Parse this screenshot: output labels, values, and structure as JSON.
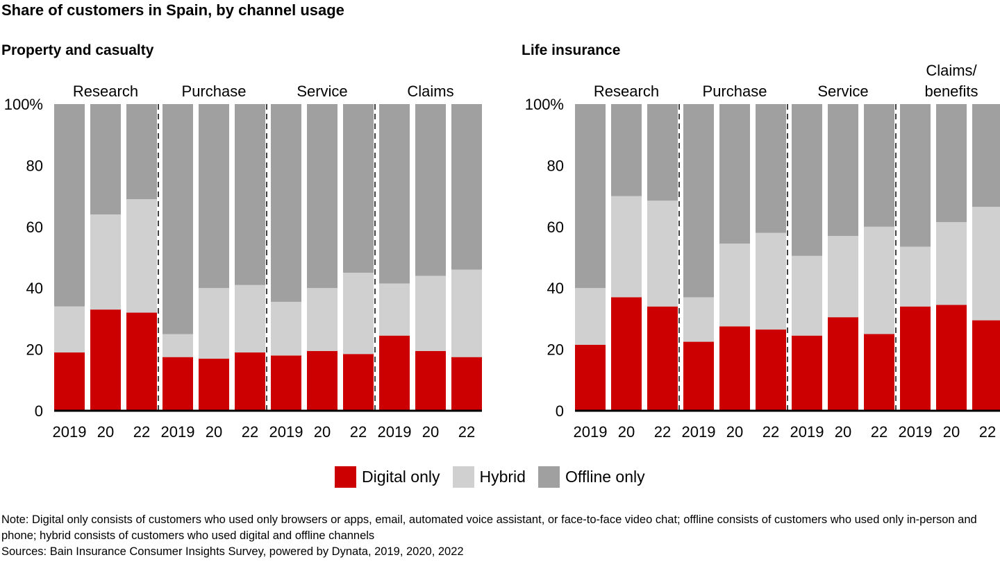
{
  "title": "Share of customers in Spain, by channel usage",
  "colors": {
    "digital": "#cc0000",
    "hybrid": "#d0d0d0",
    "offline": "#a0a0a0"
  },
  "legend": [
    {
      "key": "digital",
      "label": "Digital only"
    },
    {
      "key": "hybrid",
      "label": "Hybrid"
    },
    {
      "key": "offline",
      "label": "Offline only"
    }
  ],
  "note": "Note: Digital only consists of customers who used only browsers or apps, email, automated voice assistant, or face-to-face video chat; offline consists of customers who used only in-person and phone; hybrid consists of customers who used digital and offline channels",
  "sources": "Sources: Bain Insurance Consumer Insights Survey, powered by Dynata, 2019, 2020, 2022",
  "chart_data": [
    {
      "type": "bar",
      "stacked": true,
      "title": "Property and casualty",
      "ylim": [
        0,
        100
      ],
      "yticks": [
        "0",
        "20",
        "40",
        "60",
        "80",
        "100%"
      ],
      "groups": [
        {
          "label": "Research",
          "years": [
            "2019",
            "20",
            "22"
          ],
          "digital": [
            19,
            33,
            32
          ],
          "hybrid": [
            15,
            31,
            37
          ],
          "offline": [
            66,
            36,
            31
          ]
        },
        {
          "label": "Purchase",
          "years": [
            "2019",
            "20",
            "22"
          ],
          "digital": [
            17.5,
            17,
            19
          ],
          "hybrid": [
            7.5,
            23,
            22
          ],
          "offline": [
            75,
            60,
            59
          ]
        },
        {
          "label": "Service",
          "years": [
            "2019",
            "20",
            "22"
          ],
          "digital": [
            18,
            19.5,
            18.5
          ],
          "hybrid": [
            17.5,
            20.5,
            26.5
          ],
          "offline": [
            64.5,
            60,
            55
          ]
        },
        {
          "label": "Claims",
          "years": [
            "2019",
            "20",
            "22"
          ],
          "digital": [
            24.5,
            19.5,
            17.5
          ],
          "hybrid": [
            17,
            24.5,
            28.5
          ],
          "offline": [
            58.5,
            56,
            54
          ]
        }
      ]
    },
    {
      "type": "bar",
      "stacked": true,
      "title": "Life insurance",
      "ylim": [
        0,
        100
      ],
      "yticks": [
        "0",
        "20",
        "40",
        "60",
        "80",
        "100%"
      ],
      "groups": [
        {
          "label": "Research",
          "years": [
            "2019",
            "20",
            "22"
          ],
          "digital": [
            21.5,
            37,
            34
          ],
          "hybrid": [
            18.5,
            33,
            34.5
          ],
          "offline": [
            60,
            30,
            31.5
          ]
        },
        {
          "label": "Purchase",
          "years": [
            "2019",
            "20",
            "22"
          ],
          "digital": [
            22.5,
            27.5,
            26.5
          ],
          "hybrid": [
            14.5,
            27,
            31.5
          ],
          "offline": [
            63,
            45.5,
            42
          ]
        },
        {
          "label": "Service",
          "years": [
            "2019",
            "20",
            "22"
          ],
          "digital": [
            24.5,
            30.5,
            25
          ],
          "hybrid": [
            26,
            26.5,
            35
          ],
          "offline": [
            49.5,
            43,
            40
          ]
        },
        {
          "label": "Claims/ benefits",
          "years": [
            "2019",
            "20",
            "22"
          ],
          "digital": [
            34,
            34.5,
            29.5
          ],
          "hybrid": [
            19.5,
            27,
            37
          ],
          "offline": [
            46.5,
            38.5,
            33.5
          ]
        }
      ]
    }
  ]
}
